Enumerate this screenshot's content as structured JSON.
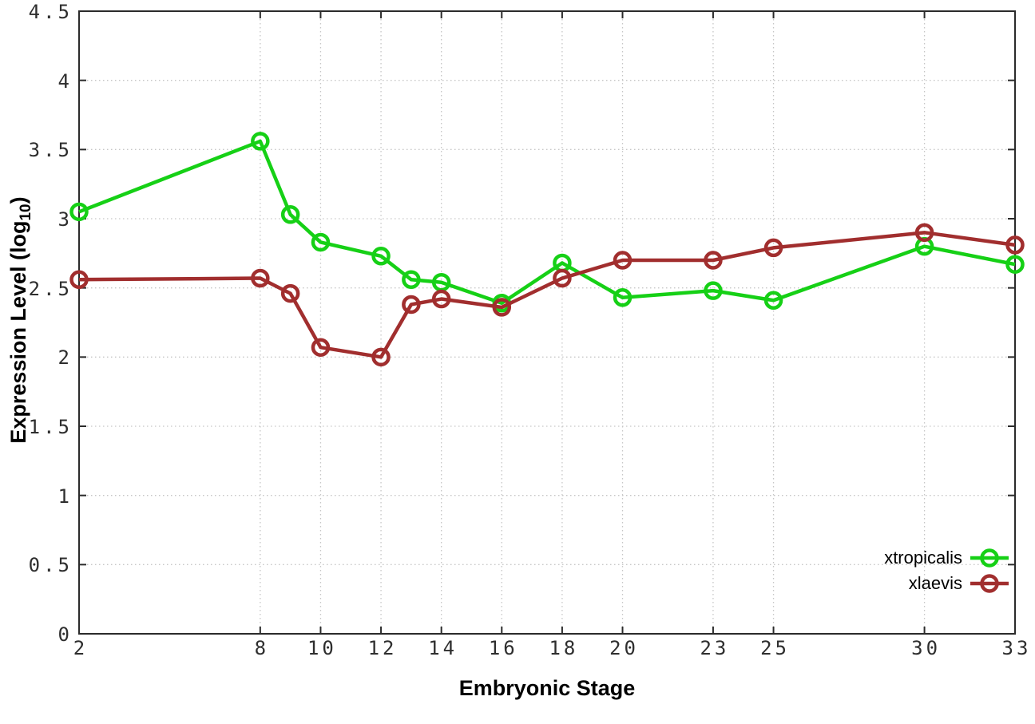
{
  "figure": {
    "background": "#ffffff",
    "border_color": "#2b2b2b",
    "grid_color": "#c6c6c6",
    "tick_label_color": "#2e2e2e"
  },
  "chart_data": {
    "type": "line",
    "title": "",
    "xlabel": "Embryonic Stage",
    "ylabel": "Expression Level (log10)",
    "ylabel_parts": {
      "prefix": "Expression Level (log",
      "sub": "10",
      "suffix": ")"
    },
    "xlim": [
      2,
      33
    ],
    "ylim": [
      0,
      4.5
    ],
    "x_ticks": [
      2,
      8,
      10,
      12,
      14,
      16,
      18,
      20,
      23,
      25,
      30,
      33
    ],
    "y_ticks": [
      "0",
      "0.5",
      "1",
      "1.5",
      "2",
      "2.5",
      "3",
      "3.5",
      "4",
      "4.5"
    ],
    "grid": true,
    "legend_position": "bottom-right",
    "x": [
      2,
      8,
      9,
      10,
      12,
      13,
      14,
      16,
      18,
      20,
      23,
      25,
      30,
      33
    ],
    "series": [
      {
        "name": "xtropicalis",
        "color": "#16d016",
        "values": [
          3.05,
          3.56,
          3.03,
          2.83,
          2.73,
          2.56,
          2.54,
          2.39,
          2.68,
          2.43,
          2.48,
          2.41,
          2.8,
          2.67
        ]
      },
      {
        "name": "xlaevis",
        "color": "#a12e2e",
        "values": [
          2.56,
          2.57,
          2.46,
          2.07,
          2.0,
          2.38,
          2.42,
          2.36,
          2.57,
          2.7,
          2.7,
          2.79,
          2.9,
          2.81
        ]
      }
    ]
  }
}
